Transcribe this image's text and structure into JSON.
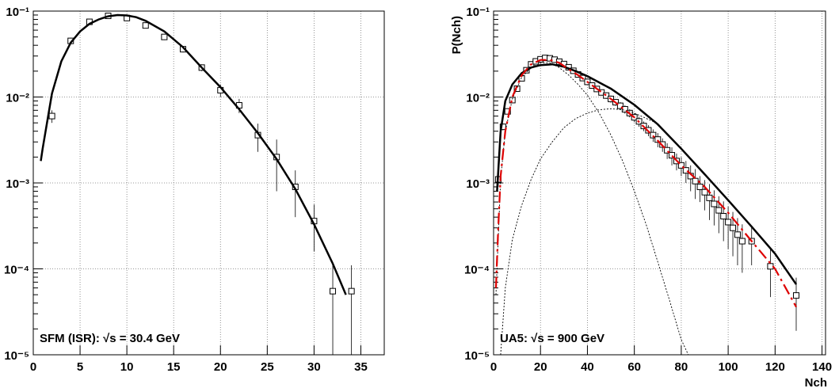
{
  "chart_data": [
    {
      "type": "scatter",
      "annotation": "SFM (ISR): √s = 30.4 GeV",
      "log_y": true,
      "grid": true,
      "xlim": [
        0,
        37.5
      ],
      "ylim": [
        1e-05,
        0.1
      ],
      "xticks": [
        0,
        5,
        10,
        15,
        20,
        25,
        30,
        35
      ],
      "yticks": [
        {
          "value": 1e-05,
          "label": "10⁻⁵"
        },
        {
          "value": 0.0001,
          "label": "10⁻⁴"
        },
        {
          "value": 0.001,
          "label": "10⁻³"
        },
        {
          "value": 0.01,
          "label": "10⁻²"
        },
        {
          "value": 0.1,
          "label": "10⁻¹"
        }
      ],
      "marker_color": "#000000",
      "x": [
        2,
        4,
        6,
        8,
        10,
        12,
        14,
        16,
        18,
        20,
        22,
        24,
        26,
        28,
        30,
        32,
        34
      ],
      "values": [
        0.006,
        0.045,
        0.075,
        0.088,
        0.083,
        0.068,
        0.05,
        0.036,
        0.022,
        0.012,
        0.008,
        0.0036,
        0.002,
        0.0009,
        0.00036,
        5.5e-05,
        5.5e-05
      ],
      "errors": [
        0.001,
        0.004,
        0.005,
        0.005,
        0.005,
        0.004,
        0.004,
        0.003,
        0.002,
        0.002,
        0.0015,
        0.0013,
        0.0012,
        0.0005,
        0.0002,
        5.5e-05,
        5.5e-05
      ],
      "fits": [
        {
          "color": "#000000",
          "style": "solid",
          "x": [
            0.8,
            1,
            2,
            3,
            4,
            5,
            6,
            7,
            8,
            9,
            10,
            11,
            12,
            14,
            16,
            18,
            20,
            22,
            24,
            26,
            28,
            30,
            32,
            33.4
          ],
          "values": [
            0.0018,
            0.0025,
            0.011,
            0.026,
            0.043,
            0.058,
            0.071,
            0.08,
            0.087,
            0.09,
            0.089,
            0.085,
            0.077,
            0.058,
            0.038,
            0.022,
            0.013,
            0.0072,
            0.0038,
            0.0019,
            0.00085,
            0.00033,
            0.000115,
            5e-05
          ]
        }
      ]
    },
    {
      "type": "scatter",
      "annotation": "UA5: √s = 900 GeV",
      "x_label": "Nch",
      "y_label": "P(Nch)",
      "log_y": true,
      "grid": true,
      "xlim": [
        0,
        141.5
      ],
      "ylim": [
        1e-05,
        0.1
      ],
      "xticks": [
        0,
        20,
        40,
        60,
        80,
        100,
        120,
        140
      ],
      "yticks": [
        {
          "value": 1e-05,
          "label": "10⁻⁵"
        },
        {
          "value": 0.0001,
          "label": "10⁻⁴"
        },
        {
          "value": 0.001,
          "label": "10⁻³"
        },
        {
          "value": 0.01,
          "label": "10⁻²"
        },
        {
          "value": 0.1,
          "label": "10⁻¹"
        }
      ],
      "marker_color": "#000000",
      "x": [
        2,
        4,
        6,
        8,
        10,
        12,
        14,
        16,
        18,
        20,
        22,
        24,
        26,
        28,
        30,
        32,
        34,
        36,
        38,
        40,
        42,
        44,
        46,
        48,
        50,
        52,
        54,
        56,
        58,
        60,
        62,
        64,
        66,
        68,
        70,
        72,
        74,
        76,
        78,
        80,
        82,
        84,
        86,
        88,
        90,
        92,
        94,
        96,
        98,
        100,
        102,
        104,
        106,
        110,
        118,
        129
      ],
      "values": [
        0.0011,
        0.0045,
        0.0068,
        0.0092,
        0.0125,
        0.0165,
        0.0205,
        0.024,
        0.026,
        0.0275,
        0.0285,
        0.0282,
        0.0272,
        0.0258,
        0.0242,
        0.0222,
        0.0202,
        0.0183,
        0.0166,
        0.015,
        0.0136,
        0.0124,
        0.0113,
        0.0104,
        0.0095,
        0.0087,
        0.0079,
        0.0072,
        0.0065,
        0.0058,
        0.0052,
        0.0046,
        0.0041,
        0.0036,
        0.0032,
        0.0028,
        0.0024,
        0.0021,
        0.0018,
        0.0016,
        0.0014,
        0.0012,
        0.00105,
        0.0009,
        0.00078,
        0.00067,
        0.00057,
        0.00048,
        0.00041,
        0.00035,
        0.0003,
        0.00025,
        0.00021,
        0.00021,
        0.000107,
        4.9e-05
      ],
      "errors": [
        0.0002,
        0.0004,
        0.0005,
        0.0006,
        0.0008,
        0.001,
        0.0012,
        0.0013,
        0.0014,
        0.0015,
        0.0015,
        0.0015,
        0.0015,
        0.0014,
        0.0013,
        0.0012,
        0.0012,
        0.0011,
        0.0011,
        0.0011,
        0.001,
        0.001,
        0.0009,
        0.0009,
        0.0009,
        0.0008,
        0.0008,
        0.0008,
        0.0007,
        0.0007,
        0.0007,
        0.0006,
        0.0006,
        0.0006,
        0.0006,
        0.0005,
        0.0005,
        0.0005,
        0.0004,
        0.0004,
        0.0004,
        0.0004,
        0.0004,
        0.0003,
        0.0003,
        0.0003,
        0.00025,
        0.00022,
        0.0002,
        0.00018,
        0.00016,
        0.00014,
        0.00012,
        0.0001,
        6e-05,
        3e-05
      ],
      "fits": [
        {
          "color": "#000000",
          "style": "dotted",
          "x": [
            1,
            3,
            5,
            8,
            12,
            16,
            20,
            24,
            28,
            32,
            36,
            40,
            45,
            50,
            55,
            60,
            65,
            70,
            75,
            80,
            83
          ],
          "values": [
            5e-05,
            0.0011,
            0.004,
            0.0095,
            0.017,
            0.022,
            0.025,
            0.025,
            0.022,
            0.018,
            0.014,
            0.0105,
            0.0065,
            0.0036,
            0.0018,
            0.0008,
            0.00033,
            0.00012,
            4.3e-05,
            1.5e-05,
            1e-05
          ]
        },
        {
          "color": "#000000",
          "style": "dotted",
          "x": [
            3,
            5,
            8,
            12,
            16,
            20,
            25,
            30,
            35,
            40,
            45,
            50,
            55,
            60,
            70
          ],
          "values": [
            1e-05,
            6e-05,
            0.00022,
            0.00055,
            0.0011,
            0.0019,
            0.003,
            0.0044,
            0.0056,
            0.0065,
            0.0071,
            0.0073,
            0.0071,
            0.0065,
            0.0049
          ]
        },
        {
          "color": "#000000",
          "style": "solid",
          "x": [
            1.5,
            3,
            5,
            8,
            12,
            16,
            20,
            25,
            30,
            35,
            40,
            50,
            60,
            70,
            80,
            90,
            100,
            110,
            120,
            129
          ],
          "values": [
            0.0008,
            0.004,
            0.009,
            0.014,
            0.019,
            0.022,
            0.0235,
            0.024,
            0.0225,
            0.02,
            0.0175,
            0.0125,
            0.0081,
            0.0048,
            0.0025,
            0.00126,
            0.00063,
            0.00031,
            0.00015,
            6.6e-05
          ]
        },
        {
          "color": "#dd0000",
          "style": "dashed",
          "x": [
            1,
            2,
            3,
            5,
            8,
            12,
            16,
            20,
            24,
            28,
            32,
            36,
            40,
            50,
            60,
            70,
            80,
            90,
            100,
            110,
            120,
            129
          ],
          "values": [
            6e-05,
            0.0003,
            0.0012,
            0.004,
            0.01,
            0.018,
            0.024,
            0.027,
            0.027,
            0.025,
            0.021,
            0.018,
            0.015,
            0.0095,
            0.0058,
            0.0031,
            0.0016,
            0.0009,
            0.00045,
            0.00021,
            0.0001,
            3.6e-05
          ]
        }
      ]
    }
  ]
}
